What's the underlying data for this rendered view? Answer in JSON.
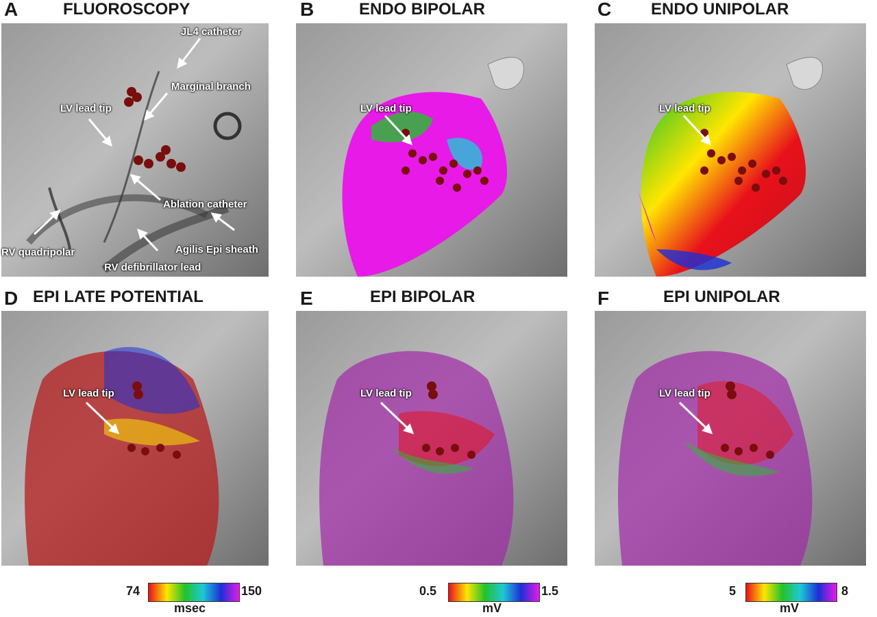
{
  "panels": [
    {
      "letter": "A",
      "title": "FLUOROSCOPY"
    },
    {
      "letter": "B",
      "title": "ENDO BIPOLAR"
    },
    {
      "letter": "C",
      "title": "ENDO UNIPOLAR"
    },
    {
      "letter": "D",
      "title": "EPI LATE POTENTIAL"
    },
    {
      "letter": "E",
      "title": "EPI BIPOLAR"
    },
    {
      "letter": "F",
      "title": "EPI UNIPOLAR"
    }
  ],
  "annotations": {
    "jl4": "JL4 catheter",
    "marginal": "Marginal branch",
    "lv_tip": "LV lead tip",
    "ablation": "Ablation catheter",
    "agilis": "Agilis Epi sheath",
    "rv_quad": "RV quadripolar",
    "rv_defib": "RV defibrillator lead"
  },
  "scales": [
    {
      "min": "74",
      "max": "150",
      "unit": "msec"
    },
    {
      "min": "0.5",
      "max": "1.5",
      "unit": "mV"
    },
    {
      "min": "5",
      "max": "8",
      "unit": "mV"
    }
  ],
  "colors": {
    "red": "#e8111b",
    "yellow": "#ffe600",
    "green": "#22c22a",
    "cyan": "#1ec8d6",
    "blue": "#1c2fd6",
    "magenta": "#e81ae8",
    "lesion": "#7a0d0d"
  }
}
